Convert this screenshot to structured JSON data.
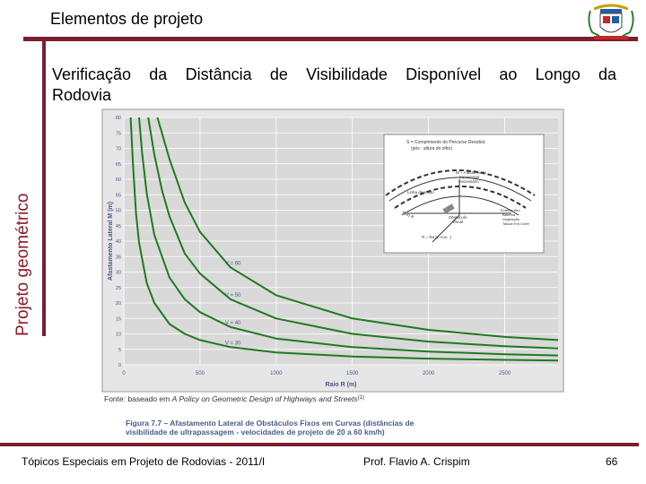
{
  "header": {
    "title": "Elementos de projeto",
    "side_title": "Projeto geométrico"
  },
  "body": {
    "line1": "Verificação da Distância de Visibilidade Disponível ao Longo da",
    "line2": "Rodovia"
  },
  "figure": {
    "source_prefix": "Fonte: baseado em ",
    "source_italic": "A Policy on Geometric Design of Highways and Streets",
    "source_suffix": "(1)",
    "caption_line1": "Figura 7.7 – Afastamento Lateral de Obstáculos Fixos em Curvas (distâncias de",
    "caption_line2": "visibilidade de ultrapassagem - velocidades de projeto de 20 a 60 km/h)",
    "inset_labels": [
      "S = Comprimento do Percurso Desobst.",
      "(pés : altura do olho)",
      "M = Afastamento",
      "transversal",
      "necessário",
      "Linha de Visão",
      "Obstáculo",
      "Visual",
      "Exterior Alto",
      "Barreira",
      "Vegetação",
      "Talude Em Corte",
      "Raio R",
      "R = Ra (L-cos...)"
    ]
  },
  "footer": {
    "left": "Tópicos Especiais em Projeto de Rodovias - 2011/I",
    "center": "Prof. Flavio A. Crispim",
    "right": "66"
  },
  "chart_data": {
    "type": "line",
    "xlabel": "Raio R (m)",
    "ylabel": "Afastamento Lateral M (m)",
    "xlim": [
      0,
      2850
    ],
    "ylim": [
      0,
      80
    ],
    "x_ticks": [
      0,
      500,
      1000,
      1500,
      2000,
      2500
    ],
    "y_ticks": [
      0,
      5,
      10,
      15,
      20,
      25,
      30,
      35,
      40,
      45,
      50,
      55,
      60,
      65,
      70,
      75,
      80
    ],
    "grid": true,
    "series": [
      {
        "name": "V = 60",
        "x": [
          220,
          250,
          300,
          400,
          500,
          700,
          1000,
          1500,
          2000,
          2500,
          2850
        ],
        "y": [
          80,
          75,
          66.5,
          52.5,
          43,
          31.5,
          22.5,
          15,
          11.3,
          9,
          8
        ]
      },
      {
        "name": "V = 50",
        "x": [
          160,
          200,
          250,
          300,
          400,
          500,
          700,
          1000,
          1500,
          2000,
          2500,
          2850
        ],
        "y": [
          80,
          68,
          56.5,
          48,
          36,
          29.5,
          21.2,
          15,
          10,
          7.5,
          6,
          5.3
        ]
      },
      {
        "name": "V = 40",
        "x": [
          100,
          120,
          150,
          200,
          300,
          400,
          500,
          700,
          1000,
          1500,
          2000,
          2500,
          2850
        ],
        "y": [
          80,
          68.5,
          55.5,
          42,
          28.2,
          21.2,
          17,
          12.2,
          8.5,
          5.7,
          4.3,
          3.4,
          3
        ]
      },
      {
        "name": "V = 30",
        "x": [
          45,
          60,
          80,
          100,
          150,
          200,
          300,
          400,
          500,
          700,
          1000,
          1500,
          2000,
          2500,
          2850
        ],
        "y": [
          80,
          65,
          49,
          39.5,
          26.5,
          20,
          13.2,
          10,
          8,
          5.7,
          4,
          2.7,
          2,
          1.6,
          1.4
        ]
      }
    ]
  },
  "colors": {
    "accent_bar": "#7b1f2e",
    "curve": "#1f7a1f",
    "plot_bg": "#d9d9d9",
    "axis_text": "#4a5a8a"
  }
}
